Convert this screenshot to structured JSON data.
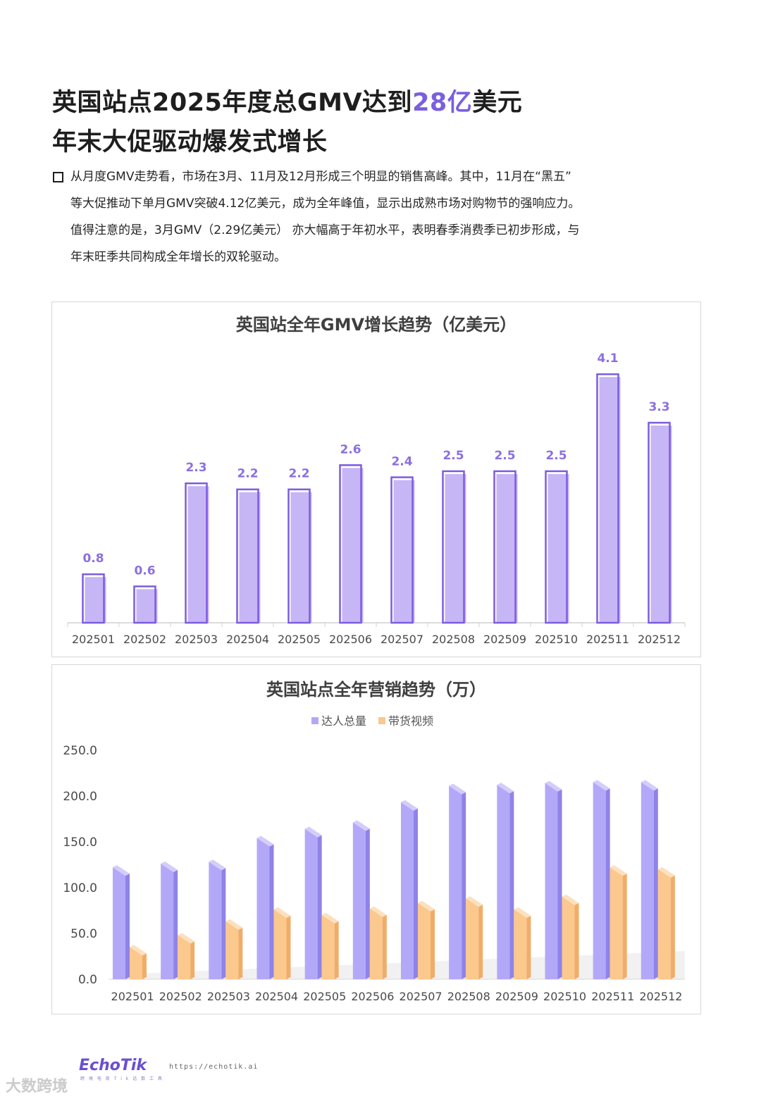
{
  "heading": {
    "line1_prefix": "英国站点2025年度总GMV达到",
    "line1_highlight": "28亿",
    "line1_suffix": "美元",
    "line2": "年末大促驱动爆发式增长"
  },
  "paragraph": {
    "lines": [
      "从月度GMV走势看，市场在3月、11月及12月形成三个明显的销售高峰。其中，11月在“黑五”",
      "等大促推动下单月GMV突破4.12亿美元，成为全年峰值，显示出成熟市场对购物节的强响应力。",
      "值得注意的是，3月GMV（2.29亿美元） 亦大幅高于年初水平，表明春季消费季已初步形成，与",
      "年末旺季共同构成全年增长的双轮驱动。"
    ]
  },
  "chart_data": [
    {
      "type": "bar",
      "title": "英国站全年GMV增长趋势（亿美元）",
      "categories": [
        "202501",
        "202502",
        "202503",
        "202504",
        "202505",
        "202506",
        "202507",
        "202508",
        "202509",
        "202510",
        "202511",
        "202512"
      ],
      "values": [
        0.8,
        0.6,
        2.3,
        2.2,
        2.2,
        2.6,
        2.4,
        2.5,
        2.5,
        2.5,
        4.1,
        3.3
      ],
      "data_labels": [
        "0.8",
        "0.6",
        "2.3",
        "2.2",
        "2.2",
        "2.6",
        "2.4",
        "2.5",
        "2.5",
        "2.5",
        "4.1",
        "3.3"
      ],
      "ylim": [
        0,
        4.3
      ],
      "grid": false,
      "colors": {
        "bar": "#c7b6f5",
        "outline": "#7c5ce0",
        "label": "#8c6fe0"
      }
    },
    {
      "type": "bar",
      "title": "英国站点全年营销趋势（万）",
      "categories": [
        "202501",
        "202502",
        "202503",
        "202504",
        "202505",
        "202506",
        "202507",
        "202508",
        "202509",
        "202510",
        "202511",
        "202512"
      ],
      "series": [
        {
          "name": "达人总量",
          "values": [
            113,
            117,
            119,
            145,
            155,
            162,
            184,
            202,
            203,
            205,
            206,
            206
          ],
          "color": "#b3a8f8"
        },
        {
          "name": "带货视频",
          "values": [
            26,
            39,
            54,
            67,
            61,
            68,
            74,
            79,
            67,
            81,
            113,
            111
          ],
          "color": "#fbc88e"
        }
      ],
      "yticks": [
        "0.0",
        "50.0",
        "100.0",
        "150.0",
        "200.0",
        "250.0"
      ],
      "ylim": [
        0,
        250
      ],
      "legend_position": "top-center",
      "grid": false
    }
  ],
  "footer": {
    "logo": "EchoTik",
    "logo_sub": "跨 境 电 商 T i k 话 数 工 具",
    "url": "https://echotik.ai",
    "watermark": "大数跨境"
  }
}
